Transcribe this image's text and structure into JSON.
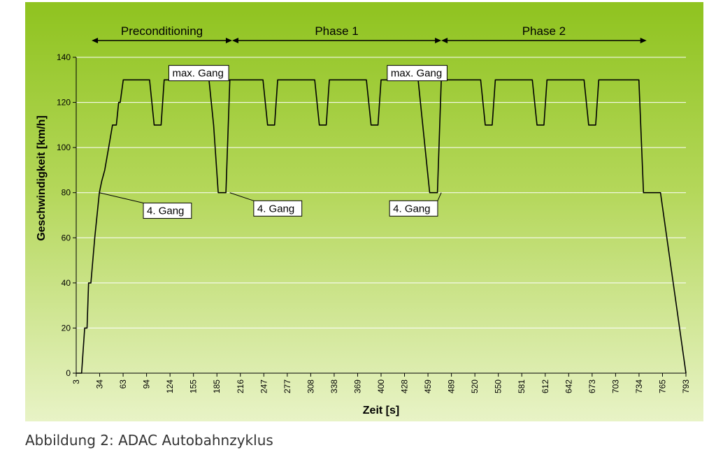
{
  "caption": "Abbildung 2: ADAC Autobahnzyklus",
  "colors": {
    "background_top": "#8fc31f",
    "background_bottom": "#e8f3c6",
    "line": "#000000",
    "grid": "#ffffff"
  },
  "chart_data": {
    "type": "line",
    "title": "",
    "xlabel": "Zeit [s]",
    "ylabel": "Geschwindigkeit [km/h]",
    "ylim": [
      0,
      140
    ],
    "yticks": [
      0,
      20,
      40,
      60,
      80,
      100,
      120,
      140
    ],
    "xlim": [
      3,
      793
    ],
    "xticks": [
      "3",
      "34",
      "63",
      "94",
      "124",
      "155",
      "185",
      "216",
      "247",
      "277",
      "308",
      "338",
      "369",
      "400",
      "428",
      "459",
      "489",
      "520",
      "550",
      "581",
      "612",
      "642",
      "673",
      "703",
      "734",
      "765",
      "793"
    ],
    "grid": "horizontal",
    "series": [
      {
        "x": [
          3,
          10,
          14,
          17,
          19,
          22,
          27,
          33,
          36,
          40,
          45,
          50,
          55,
          58,
          60,
          64,
          67,
          70,
          98,
          104,
          113,
          117,
          175,
          181,
          187,
          197,
          202,
          245,
          251,
          260,
          264,
          312,
          318,
          327,
          331,
          379,
          385,
          394,
          398,
          446,
          452,
          461,
          471,
          476,
          527,
          533,
          542,
          546,
          594,
          600,
          609,
          613,
          661,
          667,
          676,
          680,
          732,
          738,
          760,
          793
        ],
        "y": [
          0,
          0,
          20,
          20,
          40,
          40,
          60,
          80,
          85,
          90,
          100,
          110,
          110,
          120,
          120,
          130,
          130,
          130,
          130,
          110,
          110,
          130,
          130,
          110,
          80,
          80,
          130,
          130,
          110,
          110,
          130,
          130,
          110,
          110,
          130,
          130,
          110,
          110,
          130,
          130,
          110,
          80,
          80,
          130,
          130,
          110,
          110,
          130,
          130,
          110,
          110,
          130,
          130,
          110,
          110,
          130,
          130,
          80,
          80,
          0
        ]
      }
    ],
    "phases": [
      {
        "label": "Preconditioning",
        "start": 23,
        "end": 205
      },
      {
        "label": "Phase 1",
        "start": 205,
        "end": 476
      },
      {
        "label": "Phase 2",
        "start": 476,
        "end": 742
      }
    ],
    "annotations": [
      {
        "text": "4. Gang",
        "point_x": 33,
        "point_y": 80,
        "label_x": 90,
        "label_y": 72
      },
      {
        "text": "max. Gang",
        "point_x": 202,
        "point_y": 130,
        "label_x": 123,
        "label_y": 133
      },
      {
        "text": "4. Gang",
        "point_x": 202,
        "point_y": 80,
        "label_x": 233,
        "label_y": 73
      },
      {
        "text": "max. Gang",
        "point_x": 476,
        "point_y": 130,
        "label_x": 406,
        "label_y": 133
      },
      {
        "text": "4. Gang",
        "point_x": 476,
        "point_y": 80,
        "label_x": 409,
        "label_y": 73
      }
    ]
  }
}
